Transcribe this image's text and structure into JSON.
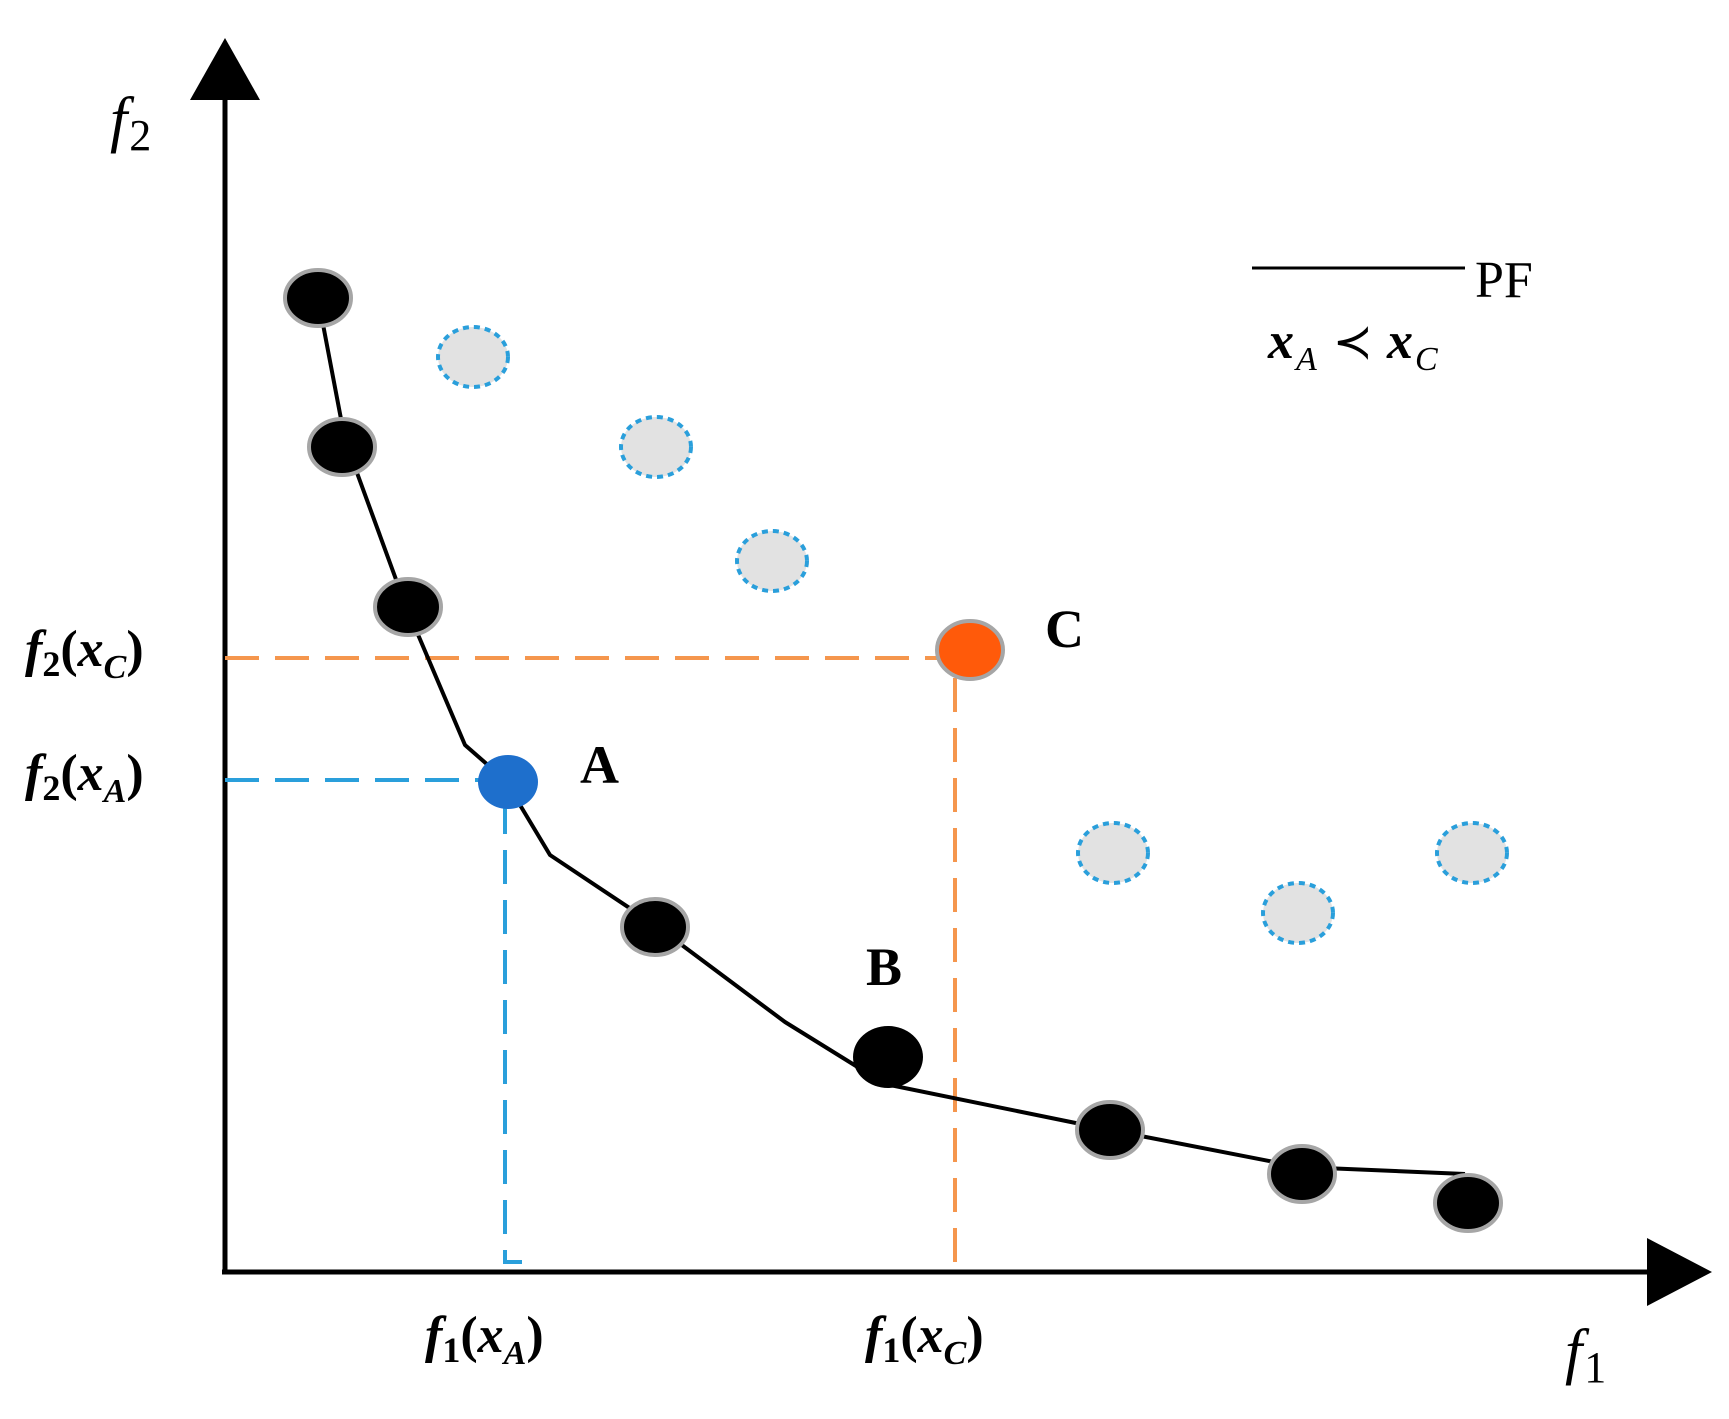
{
  "axes": {
    "x_label": {
      "main": "f",
      "sub": "1"
    },
    "y_label": {
      "main": "f",
      "sub": "2"
    }
  },
  "legend": {
    "line_label": "PF",
    "relation": {
      "a": "x",
      "a_sub": "A",
      "symbol": "≺",
      "b": "x",
      "b_sub": "C"
    }
  },
  "points": {
    "A": {
      "label": "A",
      "color": "#1E6FCC"
    },
    "B": {
      "label": "B"
    },
    "C": {
      "label": "C",
      "color": "#FF5A0A"
    }
  },
  "ticks": {
    "f1_xA": {
      "f": "f",
      "f_sub": "1",
      "x": "x",
      "x_sub": "A"
    },
    "f1_xC": {
      "f": "f",
      "f_sub": "1",
      "x": "x",
      "x_sub": "C"
    },
    "f2_xC": {
      "f": "f",
      "f_sub": "2",
      "x": "x",
      "x_sub": "C"
    },
    "f2_xA": {
      "f": "f",
      "f_sub": "2",
      "x": "x",
      "x_sub": "A"
    }
  },
  "colors": {
    "front_point": "#000000",
    "front_point_outline": "#A6A6A6",
    "dominated_fill": "#E2E2E2",
    "dominated_outline": "#2A9FDB",
    "guide_A": "#2A9FDB",
    "guide_C": "#F5964D",
    "axis": "#000000"
  }
}
